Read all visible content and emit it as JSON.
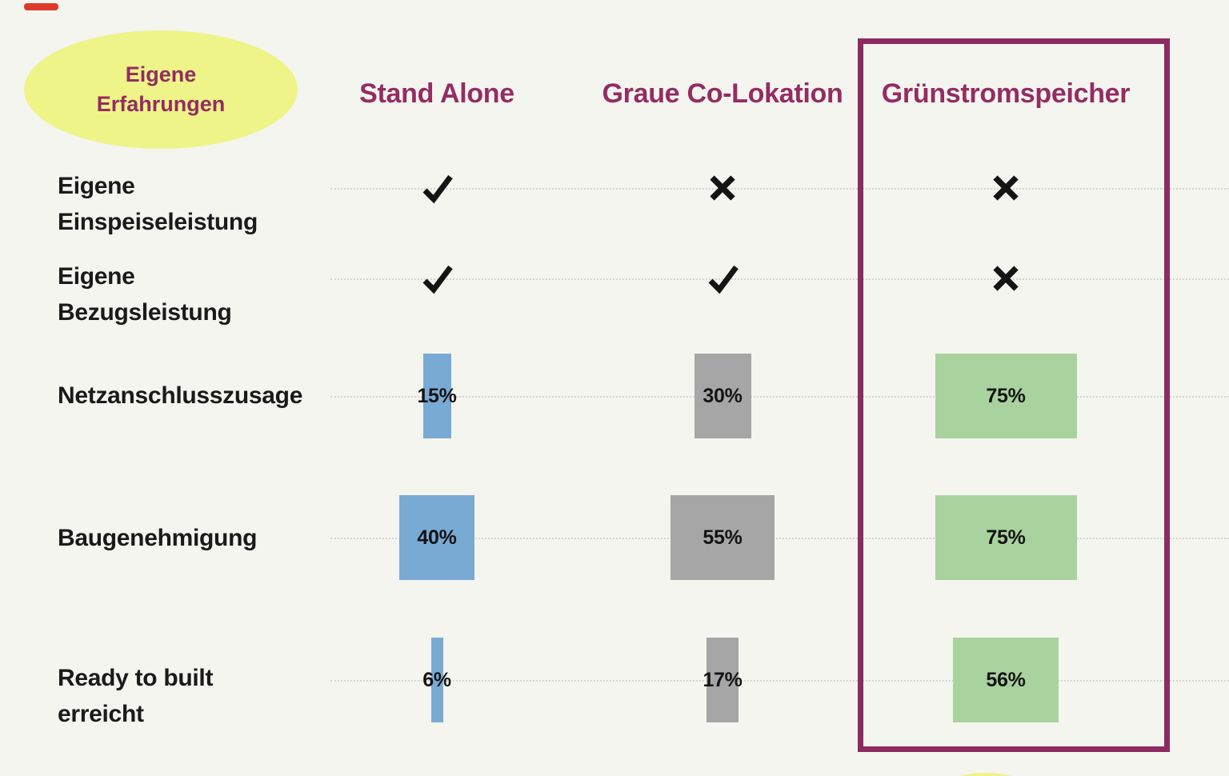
{
  "badge": {
    "line1": "Eigene",
    "line2": "Erfahrungen"
  },
  "style": {
    "background": "#f4f5ee",
    "badge_fill": "#eef487",
    "accent_magenta": "#942c63",
    "box_border": "#8e2a62",
    "gridline": "#d4d4d4",
    "label_color": "#1a1a1a",
    "value_label_color": "#141414",
    "mark_color": "#141414",
    "red_dash": "#de3a2c",
    "bar_colors": [
      "#78aad3",
      "#a6a6a6",
      "#a9d39e"
    ]
  },
  "chart_data": {
    "type": "table",
    "title": "Eigene Erfahrungen",
    "columns": [
      "Stand Alone",
      "Graue Co-Lokation",
      "Grünstromspeicher"
    ],
    "highlighted_column": "Grünstromspeicher",
    "value_unit": "%",
    "rows": [
      {
        "label": "Eigene Einspeiseleistung",
        "label_lines": [
          "Eigene",
          "Einspeiseleistung"
        ],
        "cells": [
          {
            "mark": "check"
          },
          {
            "mark": "cross"
          },
          {
            "mark": "cross"
          }
        ]
      },
      {
        "label": "Eigene Bezugsleistung",
        "label_lines": [
          "Eigene",
          "Bezugsleistung"
        ],
        "cells": [
          {
            "mark": "check"
          },
          {
            "mark": "check"
          },
          {
            "mark": "cross"
          }
        ]
      },
      {
        "label": "Netzanschlusszusage",
        "label_lines": [
          "Netzanschlusszusage"
        ],
        "cells": [
          {
            "value": 15,
            "label": "15%"
          },
          {
            "value": 30,
            "label": "30%"
          },
          {
            "value": 75,
            "label": "75%"
          }
        ]
      },
      {
        "label": "Baugenehmigung",
        "label_lines": [
          "Baugenehmigung"
        ],
        "cells": [
          {
            "value": 40,
            "label": "40%"
          },
          {
            "value": 55,
            "label": "55%"
          },
          {
            "value": 75,
            "label": "75%"
          }
        ]
      },
      {
        "label": "Ready to built erreicht",
        "label_lines": [
          "Ready to built",
          "erreicht"
        ],
        "cells": [
          {
            "value": 6,
            "label": "6%"
          },
          {
            "value": 17,
            "label": "17%"
          },
          {
            "value": 56,
            "label": "56%"
          }
        ]
      }
    ]
  }
}
